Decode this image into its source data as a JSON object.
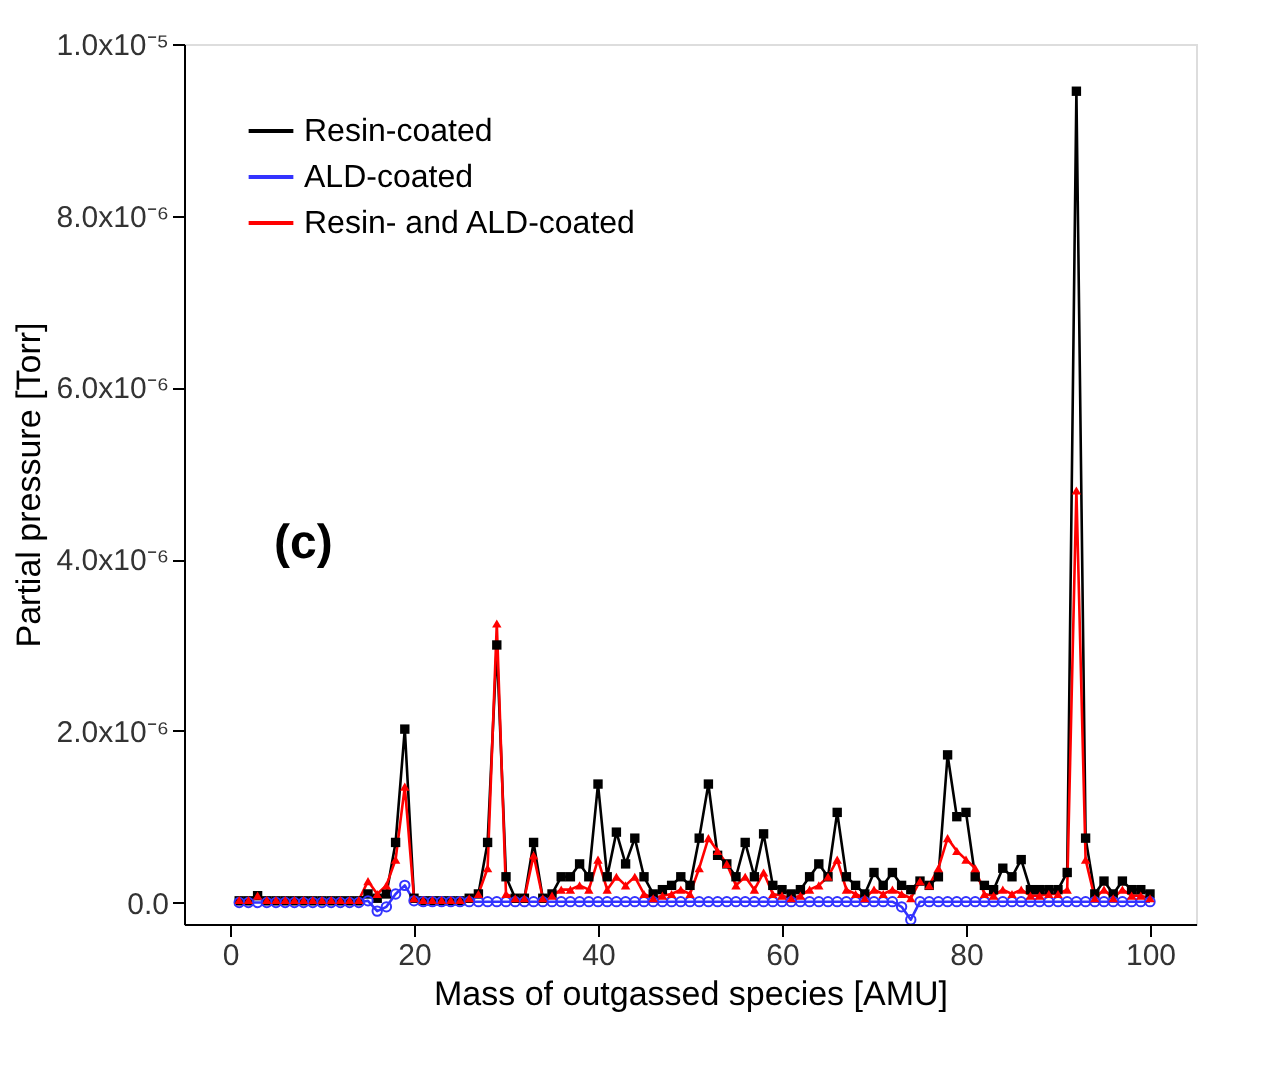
{
  "chart_data": {
    "type": "line",
    "xlabel": "Mass of outgassed species [AMU]",
    "ylabel": "Partial pressure [Torr]",
    "annotations": [
      "(c)"
    ],
    "x": [
      1,
      2,
      3,
      4,
      5,
      6,
      7,
      8,
      9,
      10,
      11,
      12,
      13,
      14,
      15,
      16,
      17,
      18,
      19,
      20,
      21,
      22,
      23,
      24,
      25,
      26,
      27,
      28,
      29,
      30,
      31,
      32,
      33,
      34,
      35,
      36,
      37,
      38,
      39,
      40,
      41,
      42,
      43,
      44,
      45,
      46,
      47,
      48,
      49,
      50,
      51,
      52,
      53,
      54,
      55,
      56,
      57,
      58,
      59,
      60,
      61,
      62,
      63,
      64,
      65,
      66,
      67,
      68,
      69,
      70,
      71,
      72,
      73,
      74,
      75,
      76,
      77,
      78,
      79,
      80,
      81,
      82,
      83,
      84,
      85,
      86,
      87,
      88,
      89,
      90,
      91,
      92,
      93,
      94,
      95,
      96,
      97,
      98,
      99,
      100
    ],
    "xlim": [
      -5,
      105
    ],
    "xticks": [
      0,
      20,
      40,
      60,
      80,
      100
    ],
    "ylim": [
      -2.5e-07,
      1e-05
    ],
    "yticks": [
      {
        "value": 0,
        "label": "0.0"
      },
      {
        "value": 2e-06,
        "label": "2.0x10⁻⁶"
      },
      {
        "value": 4e-06,
        "label": "4.0x10⁻⁶"
      },
      {
        "value": 6e-06,
        "label": "6.0x10⁻⁶"
      },
      {
        "value": 8e-06,
        "label": "8.0x10⁻⁶"
      },
      {
        "value": 1e-05,
        "label": "1.0x10⁻⁵"
      }
    ],
    "grid": false,
    "legend": "top left",
    "line_style": "solid",
    "series": [
      {
        "name": "Resin-coated",
        "color": "#000000",
        "marker": "square",
        "values": [
          2e-08,
          2e-08,
          8e-08,
          2e-08,
          2e-08,
          2e-08,
          2e-08,
          2e-08,
          2e-08,
          2e-08,
          2e-08,
          2e-08,
          2e-08,
          2e-08,
          1e-07,
          5e-08,
          1e-07,
          7e-07,
          2.02e-06,
          5e-08,
          2e-08,
          2e-08,
          2e-08,
          2e-08,
          2e-08,
          5e-08,
          1e-07,
          7e-07,
          3e-06,
          3e-07,
          5e-08,
          5e-08,
          7e-07,
          5e-08,
          1e-07,
          3e-07,
          3e-07,
          4.5e-07,
          3e-07,
          1.38e-06,
          3e-07,
          8.2e-07,
          4.5e-07,
          7.5e-07,
          3e-07,
          1e-07,
          1.5e-07,
          2e-07,
          3e-07,
          2e-07,
          7.5e-07,
          1.38e-06,
          5.5e-07,
          4.5e-07,
          3e-07,
          7e-07,
          3e-07,
          8e-07,
          2e-07,
          1.5e-07,
          1e-07,
          1.5e-07,
          3e-07,
          4.5e-07,
          3e-07,
          1.05e-06,
          3e-07,
          2e-07,
          1e-07,
          3.5e-07,
          2e-07,
          3.5e-07,
          2e-07,
          1.5e-07,
          2.5e-07,
          2e-07,
          3e-07,
          1.72e-06,
          1e-06,
          1.05e-06,
          3e-07,
          2e-07,
          1.5e-07,
          4e-07,
          3e-07,
          5e-07,
          1.5e-07,
          1.5e-07,
          1.5e-07,
          1.5e-07,
          3.5e-07,
          9.45e-06,
          7.5e-07,
          1e-07,
          2.5e-07,
          1e-07,
          2.5e-07,
          1.5e-07,
          1.5e-07,
          1e-07
        ]
      },
      {
        "name": "ALD-coated",
        "color": "#3333ff",
        "marker": "circle",
        "values": [
          0,
          0,
          0,
          0,
          0,
          0,
          0,
          0,
          0,
          0,
          0,
          0,
          0,
          0,
          2e-08,
          -1e-07,
          -5e-08,
          1e-07,
          2e-07,
          2e-08,
          1e-08,
          1e-08,
          1e-08,
          1e-08,
          1e-08,
          1e-08,
          1e-08,
          1e-08,
          1e-08,
          1e-08,
          1e-08,
          1e-08,
          1e-08,
          1e-08,
          1e-08,
          1e-08,
          1e-08,
          1e-08,
          1e-08,
          1e-08,
          1e-08,
          1e-08,
          1e-08,
          1e-08,
          1e-08,
          1e-08,
          1e-08,
          1e-08,
          1e-08,
          1e-08,
          1e-08,
          1e-08,
          1e-08,
          1e-08,
          1e-08,
          1e-08,
          1e-08,
          1e-08,
          1e-08,
          1e-08,
          1e-08,
          1e-08,
          1e-08,
          1e-08,
          1e-08,
          1e-08,
          1e-08,
          1e-08,
          1e-08,
          1e-08,
          1e-08,
          1e-08,
          -5e-08,
          -2e-07,
          1e-08,
          1e-08,
          1e-08,
          1e-08,
          1e-08,
          1e-08,
          1e-08,
          1e-08,
          1e-08,
          1e-08,
          1e-08,
          1e-08,
          1e-08,
          1e-08,
          1e-08,
          1e-08,
          1e-08,
          1e-08,
          1e-08,
          1e-08,
          1e-08,
          1e-08,
          1e-08,
          1e-08,
          1e-08,
          1e-08
        ]
      },
      {
        "name": "Resin- and ALD-coated",
        "color": "#ff0000",
        "marker": "triangle",
        "values": [
          3e-08,
          3e-08,
          8e-08,
          3e-08,
          3e-08,
          3e-08,
          3e-08,
          3e-08,
          3e-08,
          3e-08,
          3e-08,
          3e-08,
          3e-08,
          3e-08,
          2.5e-07,
          1e-07,
          2e-07,
          5e-07,
          1.35e-06,
          5e-08,
          3e-08,
          3e-08,
          3e-08,
          3e-08,
          3e-08,
          5e-08,
          1e-07,
          4e-07,
          3.25e-06,
          1e-07,
          5e-08,
          5e-08,
          5.5e-07,
          5e-08,
          8e-08,
          1.5e-07,
          1.5e-07,
          2e-07,
          1.5e-07,
          5e-07,
          1.5e-07,
          3e-07,
          2e-07,
          3e-07,
          1e-07,
          5e-08,
          8e-08,
          1e-07,
          1.5e-07,
          1e-07,
          4e-07,
          7.5e-07,
          6e-07,
          4.5e-07,
          2e-07,
          3e-07,
          1.5e-07,
          3.5e-07,
          1e-07,
          8e-08,
          5e-08,
          8e-08,
          1.5e-07,
          2e-07,
          3e-07,
          5e-07,
          1.5e-07,
          1e-07,
          5e-08,
          1.5e-07,
          1e-07,
          1.5e-07,
          1e-07,
          5e-08,
          2.5e-07,
          2e-07,
          4e-07,
          7.5e-07,
          6e-07,
          5e-07,
          4e-07,
          1e-07,
          8e-08,
          1.5e-07,
          1e-07,
          1.5e-07,
          8e-08,
          8e-08,
          1e-07,
          1e-07,
          1.5e-07,
          4.8e-06,
          5e-07,
          5e-08,
          1.5e-07,
          5e-08,
          1.5e-07,
          8e-08,
          8e-08,
          5e-08
        ]
      }
    ]
  }
}
